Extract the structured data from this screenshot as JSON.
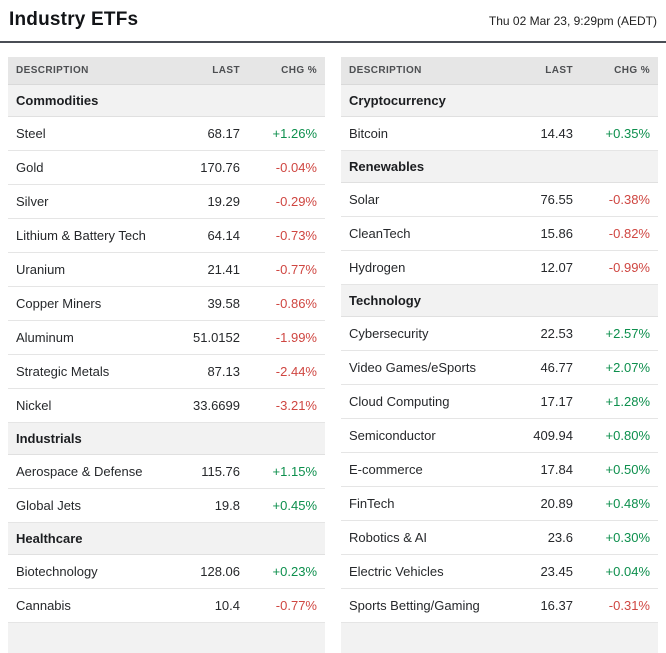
{
  "colors": {
    "positive": "#0d8f4d",
    "negative": "#cf4641"
  },
  "chart_data": {
    "type": "table",
    "title": "Industry ETFs",
    "timestamp": "Thu 02 Mar 23, 9:29pm (AEDT)",
    "columns": [
      "DESCRIPTION",
      "LAST",
      "CHG %"
    ],
    "tables": [
      {
        "sections": [
          {
            "name": "Commodities",
            "rows": [
              {
                "description": "Steel",
                "last": "68.17",
                "chg": "+1.26%",
                "direction": "up"
              },
              {
                "description": "Gold",
                "last": "170.76",
                "chg": "-0.04%",
                "direction": "down"
              },
              {
                "description": "Silver",
                "last": "19.29",
                "chg": "-0.29%",
                "direction": "down"
              },
              {
                "description": "Lithium & Battery Tech",
                "last": "64.14",
                "chg": "-0.73%",
                "direction": "down"
              },
              {
                "description": "Uranium",
                "last": "21.41",
                "chg": "-0.77%",
                "direction": "down"
              },
              {
                "description": "Copper Miners",
                "last": "39.58",
                "chg": "-0.86%",
                "direction": "down"
              },
              {
                "description": "Aluminum",
                "last": "51.0152",
                "chg": "-1.99%",
                "direction": "down"
              },
              {
                "description": "Strategic Metals",
                "last": "87.13",
                "chg": "-2.44%",
                "direction": "down"
              },
              {
                "description": "Nickel",
                "last": "33.6699",
                "chg": "-3.21%",
                "direction": "down"
              }
            ]
          },
          {
            "name": "Industrials",
            "rows": [
              {
                "description": "Aerospace & Defense",
                "last": "115.76",
                "chg": "+1.15%",
                "direction": "up"
              },
              {
                "description": "Global Jets",
                "last": "19.8",
                "chg": "+0.45%",
                "direction": "up"
              }
            ]
          },
          {
            "name": "Healthcare",
            "rows": [
              {
                "description": "Biotechnology",
                "last": "128.06",
                "chg": "+0.23%",
                "direction": "up"
              },
              {
                "description": "Cannabis",
                "last": "10.4",
                "chg": "-0.77%",
                "direction": "down"
              }
            ]
          }
        ]
      },
      {
        "sections": [
          {
            "name": "Cryptocurrency",
            "rows": [
              {
                "description": "Bitcoin",
                "last": "14.43",
                "chg": "+0.35%",
                "direction": "up"
              }
            ]
          },
          {
            "name": "Renewables",
            "rows": [
              {
                "description": "Solar",
                "last": "76.55",
                "chg": "-0.38%",
                "direction": "down"
              },
              {
                "description": "CleanTech",
                "last": "15.86",
                "chg": "-0.82%",
                "direction": "down"
              },
              {
                "description": "Hydrogen",
                "last": "12.07",
                "chg": "-0.99%",
                "direction": "down"
              }
            ]
          },
          {
            "name": "Technology",
            "rows": [
              {
                "description": "Cybersecurity",
                "last": "22.53",
                "chg": "+2.57%",
                "direction": "up"
              },
              {
                "description": "Video Games/eSports",
                "last": "46.77",
                "chg": "+2.07%",
                "direction": "up"
              },
              {
                "description": "Cloud Computing",
                "last": "17.17",
                "chg": "+1.28%",
                "direction": "up"
              },
              {
                "description": "Semiconductor",
                "last": "409.94",
                "chg": "+0.80%",
                "direction": "up"
              },
              {
                "description": "E-commerce",
                "last": "17.84",
                "chg": "+0.50%",
                "direction": "up"
              },
              {
                "description": "FinTech",
                "last": "20.89",
                "chg": "+0.48%",
                "direction": "up"
              },
              {
                "description": "Robotics & AI",
                "last": "23.6",
                "chg": "+0.30%",
                "direction": "up"
              },
              {
                "description": "Electric Vehicles",
                "last": "23.45",
                "chg": "+0.04%",
                "direction": "up"
              },
              {
                "description": "Sports Betting/Gaming",
                "last": "16.37",
                "chg": "-0.31%",
                "direction": "down"
              }
            ]
          }
        ]
      }
    ]
  }
}
